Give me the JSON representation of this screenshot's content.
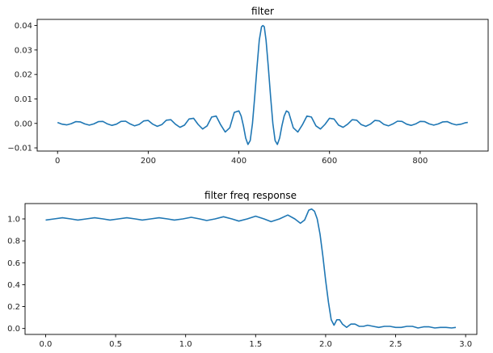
{
  "chart_data": [
    {
      "type": "line",
      "title": "filter",
      "xlabel": "",
      "ylabel": "",
      "xlim": [
        -45,
        950
      ],
      "ylim": [
        -0.0113,
        0.0425
      ],
      "grid": false,
      "legend": null,
      "xticks": [
        0,
        200,
        400,
        600,
        800
      ],
      "xtick_labels": [
        "0",
        "200",
        "400",
        "600",
        "800"
      ],
      "yticks": [
        -0.01,
        0.0,
        0.01,
        0.02,
        0.03,
        0.04
      ],
      "ytick_labels": [
        "−0.01",
        "0.00",
        "0.01",
        "0.02",
        "0.03",
        "0.04"
      ],
      "series": [
        {
          "name": "filter",
          "color": "#1f77b4",
          "x": [
            0,
            10,
            20,
            30,
            40,
            50,
            60,
            70,
            80,
            90,
            100,
            110,
            120,
            130,
            140,
            150,
            160,
            170,
            180,
            190,
            200,
            210,
            220,
            230,
            240,
            250,
            260,
            270,
            280,
            290,
            300,
            310,
            320,
            330,
            340,
            350,
            360,
            370,
            380,
            390,
            400,
            405,
            410,
            415,
            420,
            425,
            430,
            435,
            440,
            445,
            450,
            453,
            456,
            460,
            465,
            470,
            475,
            480,
            485,
            490,
            495,
            500,
            505,
            510,
            520,
            530,
            540,
            550,
            560,
            570,
            580,
            590,
            600,
            610,
            620,
            630,
            640,
            650,
            660,
            670,
            680,
            690,
            700,
            710,
            720,
            730,
            740,
            750,
            760,
            770,
            780,
            790,
            800,
            810,
            820,
            830,
            840,
            850,
            860,
            870,
            880,
            890,
            900,
            905
          ],
          "y": [
            0.0004,
            -0.0003,
            -0.0006,
            -0.0001,
            0.0007,
            0.0006,
            -0.0002,
            -0.0007,
            -0.0002,
            0.0007,
            0.0008,
            -0.0002,
            -0.0008,
            -0.0003,
            0.0008,
            0.0009,
            -0.0002,
            -0.001,
            -0.0004,
            0.001,
            0.0012,
            -0.0003,
            -0.0012,
            -0.0005,
            0.0013,
            0.0015,
            -0.0003,
            -0.0016,
            -0.0007,
            0.0018,
            0.0021,
            -0.0004,
            -0.0023,
            -0.001,
            0.0026,
            0.003,
            -0.0006,
            -0.0035,
            -0.0018,
            0.0045,
            0.0051,
            0.003,
            -0.001,
            -0.006,
            -0.0086,
            -0.007,
            0.0,
            0.011,
            0.023,
            0.034,
            0.0395,
            0.04,
            0.0395,
            0.034,
            0.023,
            0.011,
            0.0,
            -0.007,
            -0.0086,
            -0.006,
            -0.001,
            0.003,
            0.0051,
            0.0045,
            -0.0018,
            -0.0035,
            -0.0006,
            0.003,
            0.0026,
            -0.001,
            -0.0023,
            -0.0004,
            0.0021,
            0.0018,
            -0.0007,
            -0.0016,
            -0.0003,
            0.0015,
            0.0013,
            -0.0005,
            -0.0012,
            -0.0003,
            0.0012,
            0.001,
            -0.0004,
            -0.001,
            -0.0002,
            0.0009,
            0.0008,
            -0.0003,
            -0.0008,
            -0.0002,
            0.0008,
            0.0007,
            -0.0002,
            -0.0007,
            -0.0002,
            0.0006,
            0.0007,
            -0.0001,
            -0.0006,
            -0.0003,
            0.0003,
            0.0004
          ]
        }
      ]
    },
    {
      "type": "line",
      "title": "filter freq response",
      "xlabel": "",
      "ylabel": "",
      "xlim": [
        -0.147,
        3.08
      ],
      "ylim": [
        -0.054,
        1.14
      ],
      "grid": false,
      "legend": null,
      "xticks": [
        0.0,
        0.5,
        1.0,
        1.5,
        2.0,
        2.5,
        3.0
      ],
      "xtick_labels": [
        "0.0",
        "0.5",
        "1.0",
        "1.5",
        "2.0",
        "2.5",
        "3.0"
      ],
      "yticks": [
        0.0,
        0.2,
        0.4,
        0.6,
        0.8,
        1.0
      ],
      "ytick_labels": [
        "0.0",
        "0.2",
        "0.4",
        "0.6",
        "0.8",
        "1.0"
      ],
      "series": [
        {
          "name": "filter freq response",
          "color": "#1f77b4",
          "x": [
            0.0,
            0.06,
            0.12,
            0.18,
            0.23,
            0.29,
            0.35,
            0.41,
            0.46,
            0.52,
            0.58,
            0.64,
            0.69,
            0.75,
            0.81,
            0.87,
            0.92,
            0.98,
            1.04,
            1.1,
            1.15,
            1.21,
            1.27,
            1.33,
            1.38,
            1.44,
            1.5,
            1.56,
            1.61,
            1.67,
            1.73,
            1.78,
            1.82,
            1.85,
            1.88,
            1.9,
            1.92,
            1.94,
            1.96,
            1.98,
            2.0,
            2.02,
            2.04,
            2.06,
            2.08,
            2.1,
            2.12,
            2.15,
            2.18,
            2.21,
            2.24,
            2.27,
            2.3,
            2.34,
            2.38,
            2.42,
            2.46,
            2.5,
            2.54,
            2.58,
            2.62,
            2.66,
            2.7,
            2.74,
            2.78,
            2.82,
            2.86,
            2.9,
            2.93
          ],
          "y": [
            0.99,
            1.0,
            1.01,
            1.0,
            0.99,
            1.0,
            1.01,
            1.0,
            0.99,
            1.0,
            1.01,
            1.0,
            0.99,
            1.0,
            1.01,
            1.0,
            0.99,
            1.0,
            1.015,
            1.0,
            0.985,
            1.0,
            1.02,
            1.0,
            0.98,
            1.0,
            1.025,
            1.0,
            0.975,
            1.0,
            1.035,
            1.0,
            0.96,
            0.99,
            1.08,
            1.09,
            1.07,
            1.0,
            0.86,
            0.66,
            0.44,
            0.24,
            0.08,
            0.03,
            0.08,
            0.08,
            0.04,
            0.01,
            0.04,
            0.04,
            0.02,
            0.02,
            0.03,
            0.02,
            0.01,
            0.02,
            0.02,
            0.01,
            0.01,
            0.02,
            0.02,
            0.005,
            0.015,
            0.015,
            0.005,
            0.01,
            0.01,
            0.005,
            0.01
          ]
        }
      ]
    }
  ]
}
